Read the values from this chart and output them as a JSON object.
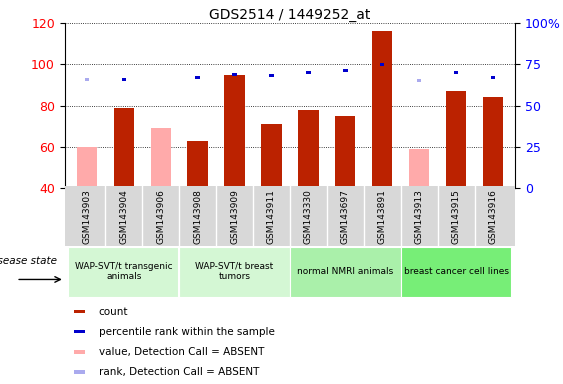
{
  "title": "GDS2514 / 1449252_at",
  "samples": [
    "GSM143903",
    "GSM143904",
    "GSM143906",
    "GSM143908",
    "GSM143909",
    "GSM143911",
    "GSM143330",
    "GSM143697",
    "GSM143891",
    "GSM143913",
    "GSM143915",
    "GSM143916"
  ],
  "count_values": [
    null,
    79,
    null,
    63,
    95,
    71,
    78,
    75,
    116,
    null,
    87,
    84
  ],
  "count_absent": [
    60,
    null,
    69,
    null,
    null,
    null,
    null,
    null,
    null,
    59,
    null,
    null
  ],
  "percentile_values": [
    null,
    66,
    null,
    67,
    69,
    68,
    70,
    71,
    75,
    null,
    70,
    67
  ],
  "percentile_absent": [
    66,
    null,
    null,
    null,
    null,
    null,
    null,
    null,
    null,
    65,
    null,
    null
  ],
  "groups": [
    {
      "label": "WAP-SVT/t transgenic\nanimals",
      "start": 0,
      "end": 3,
      "color": "#d4f7d4"
    },
    {
      "label": "WAP-SVT/t breast\ntumors",
      "start": 3,
      "end": 6,
      "color": "#d4f7d4"
    },
    {
      "label": "normal NMRI animals",
      "start": 6,
      "end": 9,
      "color": "#aaf0aa"
    },
    {
      "label": "breast cancer cell lines",
      "start": 9,
      "end": 12,
      "color": "#77ee77"
    }
  ],
  "ylim_left": [
    40,
    120
  ],
  "ylim_right": [
    0,
    100
  ],
  "right_ticks": [
    0,
    25,
    50,
    75,
    100
  ],
  "right_tick_labels": [
    "0",
    "25",
    "50",
    "75",
    "100%"
  ],
  "left_ticks": [
    40,
    60,
    80,
    100,
    120
  ],
  "bar_color_red": "#bb2200",
  "bar_color_absent": "#ffaaaa",
  "dot_color_blue": "#0000cc",
  "dot_color_absent": "#aaaaee",
  "background_color": "#ffffff",
  "disease_state_label": "disease state",
  "legend_items": [
    {
      "color": "#bb2200",
      "label": "count"
    },
    {
      "color": "#0000cc",
      "label": "percentile rank within the sample"
    },
    {
      "color": "#ffaaaa",
      "label": "value, Detection Call = ABSENT"
    },
    {
      "color": "#aaaaee",
      "label": "rank, Detection Call = ABSENT"
    }
  ]
}
